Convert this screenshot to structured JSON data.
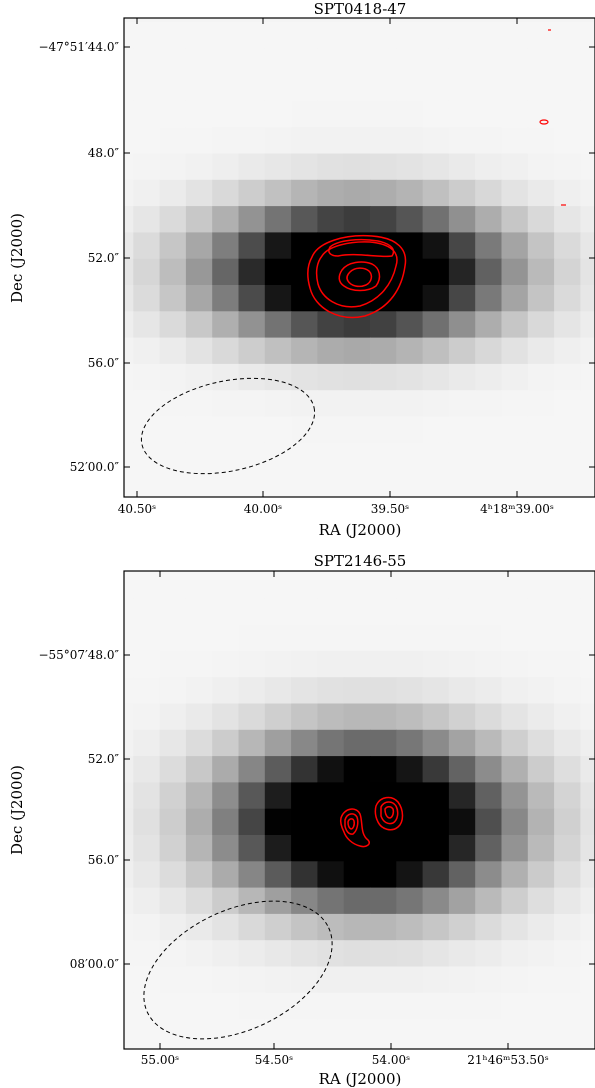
{
  "figure": {
    "panels": [
      {
        "title": "SPT0418-47",
        "xlabel": "RA (J2000)",
        "ylabel": "Dec (J2000)",
        "xticks": [
          "40.50ˢ",
          "40.00ˢ",
          "39.50ˢ",
          "4ʰ18ᵐ39.00ˢ"
        ],
        "yticks": [
          "−47°51′44.0″",
          "48.0″",
          "52.0″",
          "56.0″",
          "52′00.0″"
        ]
      },
      {
        "title": "SPT2146-55",
        "xlabel": "RA (J2000)",
        "ylabel": "Dec (J2000)",
        "xticks": [
          "55.00ˢ",
          "54.50ˢ",
          "54.00ˢ",
          "21ʰ46ᵐ53.50ˢ"
        ],
        "yticks": [
          "−55°07′48.0″",
          "52.0″",
          "56.0″",
          "08′00.0″"
        ]
      }
    ]
  },
  "chart_data": [
    {
      "type": "heatmap",
      "title": "SPT0418-47",
      "xlabel": "RA (J2000)",
      "ylabel": "Dec (J2000)",
      "x_tick_values_sec": [
        40.5,
        40.0,
        39.5,
        39.0
      ],
      "y_tick_values_arcsec": [
        44.0,
        48.0,
        52.0,
        56.0,
        60.0
      ],
      "x_range_sec": [
        40.55,
        38.8
      ],
      "y_range_arcsec": [
        42.5,
        61.5
      ],
      "grid": false,
      "contour_color": "#ff0000",
      "image": "grayscale pixelated continuum emission, bright peak near RA 39.6s, Dec 52.8 arcsec",
      "beam": "dashed ellipse at lower left",
      "colors": {
        "contour": "#ff0000",
        "beam": "#000000"
      }
    },
    {
      "type": "heatmap",
      "title": "SPT2146-55",
      "xlabel": "RA (J2000)",
      "ylabel": "Dec (J2000)",
      "x_tick_values_sec": [
        55.0,
        54.5,
        54.0,
        53.5
      ],
      "y_tick_values_arcsec": [
        48.0,
        52.0,
        56.0,
        60.0
      ],
      "x_range_sec": [
        55.12,
        53.2
      ],
      "y_range_arcsec": [
        44.3,
        63.5
      ],
      "grid": false,
      "contour_color": "#ff0000",
      "image": "grayscale pixelated continuum emission, bright peak near RA 54.1s, Dec 54.5 arcsec",
      "beam": "dashed ellipse at lower left",
      "colors": {
        "contour": "#ff0000",
        "beam": "#000000"
      }
    }
  ]
}
